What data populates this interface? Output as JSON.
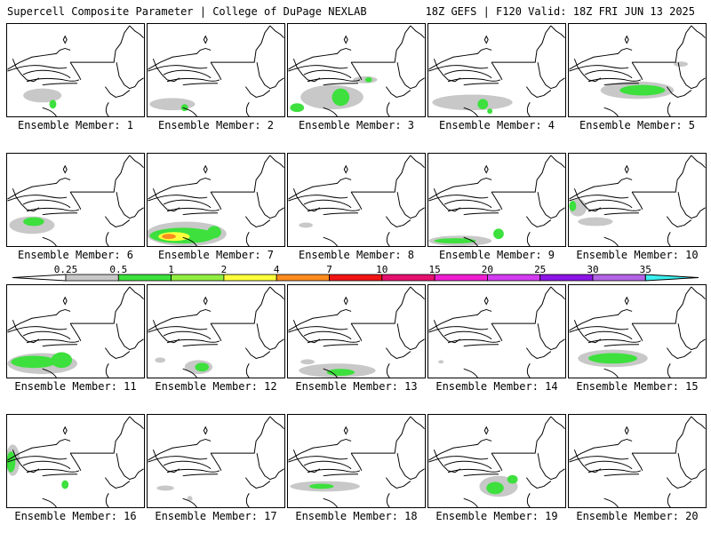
{
  "header": {
    "left": "Supercell Composite Parameter | College of DuPage NEXLAB",
    "right": "18Z GEFS | F120 Valid: 18Z FRI JUN 13 2025"
  },
  "legend": {
    "levels": [
      "0.25",
      "0.5",
      "1",
      "2",
      "4",
      "7",
      "10",
      "15",
      "20",
      "25",
      "30",
      "35"
    ],
    "colors": [
      "#c8c8c8",
      "#3de03d",
      "#90ee40",
      "#ffff3c",
      "#ff8c1e",
      "#f01414",
      "#e6106e",
      "#f01ed2",
      "#d23cf0",
      "#8c14e6",
      "#b464e6",
      "#3cf0f0"
    ]
  },
  "members": [
    {
      "label": "Ensemble Member: 1",
      "signal": "weak"
    },
    {
      "label": "Ensemble Member: 2",
      "signal": "weak"
    },
    {
      "label": "Ensemble Member: 3",
      "signal": "moderate"
    },
    {
      "label": "Ensemble Member: 4",
      "signal": "weak"
    },
    {
      "label": "Ensemble Member: 5",
      "signal": "moderate"
    },
    {
      "label": "Ensemble Member: 6",
      "signal": "weak"
    },
    {
      "label": "Ensemble Member: 7",
      "signal": "strong"
    },
    {
      "label": "Ensemble Member: 8",
      "signal": "minimal"
    },
    {
      "label": "Ensemble Member: 9",
      "signal": "weak"
    },
    {
      "label": "Ensemble Member: 10",
      "signal": "minimal"
    },
    {
      "label": "Ensemble Member: 11",
      "signal": "moderate"
    },
    {
      "label": "Ensemble Member: 12",
      "signal": "weak"
    },
    {
      "label": "Ensemble Member: 13",
      "signal": "weak"
    },
    {
      "label": "Ensemble Member: 14",
      "signal": "minimal"
    },
    {
      "label": "Ensemble Member: 15",
      "signal": "moderate"
    },
    {
      "label": "Ensemble Member: 16",
      "signal": "weak"
    },
    {
      "label": "Ensemble Member: 17",
      "signal": "minimal"
    },
    {
      "label": "Ensemble Member: 18",
      "signal": "weak"
    },
    {
      "label": "Ensemble Member: 19",
      "signal": "weak"
    },
    {
      "label": "Ensemble Member: 20",
      "signal": "minimal"
    }
  ]
}
